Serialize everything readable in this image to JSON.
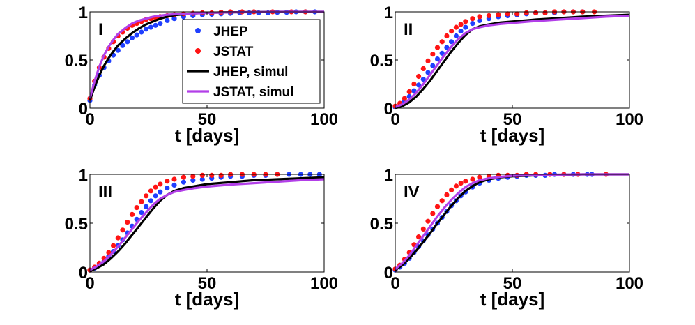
{
  "figure": {
    "legend": {
      "entries": [
        {
          "label": "JHEP",
          "kind": "dots",
          "color": "#1f3fff"
        },
        {
          "label": "JSTAT",
          "kind": "dots",
          "color": "#ff1414"
        },
        {
          "label": "JHEP, simul",
          "kind": "line",
          "color": "#000000"
        },
        {
          "label": "JSTAT, simul",
          "kind": "line",
          "color": "#b23fe8"
        }
      ]
    }
  },
  "chart_data": [
    {
      "panel": "I",
      "type": "scatter",
      "xlabel": "t [days]",
      "ylabel": "",
      "xlim": [
        0,
        100
      ],
      "ylim": [
        0,
        1
      ],
      "xticks": [
        "0",
        "50",
        "100"
      ],
      "yticks": [
        "0",
        "0.5",
        "1"
      ],
      "series": [
        {
          "name": "JHEP",
          "kind": "dots",
          "color": "#1f3fff",
          "x": [
            0,
            2,
            4,
            6,
            8,
            10,
            12,
            14,
            16,
            18,
            20,
            22,
            24,
            26,
            28,
            30,
            33,
            36,
            40,
            44,
            48,
            52,
            56,
            60,
            64,
            68,
            72,
            76,
            80,
            84,
            88,
            92,
            96
          ],
          "y": [
            0.08,
            0.24,
            0.34,
            0.42,
            0.49,
            0.55,
            0.6,
            0.65,
            0.69,
            0.73,
            0.76,
            0.79,
            0.82,
            0.84,
            0.86,
            0.88,
            0.91,
            0.93,
            0.95,
            0.96,
            0.97,
            0.975,
            0.98,
            0.985,
            0.99,
            0.99,
            0.99,
            0.99,
            0.995,
            0.995,
            1.0,
            1.0,
            1.0
          ]
        },
        {
          "name": "JSTAT",
          "kind": "dots",
          "color": "#ff1414",
          "x": [
            0,
            2,
            4,
            6,
            8,
            10,
            12,
            14,
            16,
            18,
            20,
            22,
            24,
            26,
            28,
            30,
            33,
            36,
            40,
            44,
            48,
            52,
            56,
            60,
            65,
            70,
            78,
            86,
            92
          ],
          "y": [
            0.1,
            0.28,
            0.42,
            0.53,
            0.62,
            0.69,
            0.75,
            0.79,
            0.83,
            0.86,
            0.88,
            0.9,
            0.92,
            0.93,
            0.94,
            0.95,
            0.96,
            0.97,
            0.98,
            0.985,
            0.99,
            0.99,
            0.995,
            1.0,
            1.0,
            1.0,
            1.0,
            1.0,
            1.0
          ]
        },
        {
          "name": "JHEP, simul",
          "kind": "line",
          "color": "#000000",
          "x": [
            0,
            2,
            4,
            6,
            8,
            10,
            12,
            15,
            18,
            21,
            24,
            27,
            30,
            33,
            36,
            40,
            45,
            50,
            60,
            70,
            80,
            90,
            100
          ],
          "y": [
            0.08,
            0.22,
            0.34,
            0.44,
            0.52,
            0.59,
            0.65,
            0.72,
            0.78,
            0.83,
            0.87,
            0.9,
            0.93,
            0.95,
            0.965,
            0.975,
            0.985,
            0.99,
            0.995,
            0.998,
            1.0,
            1.0,
            1.0
          ]
        },
        {
          "name": "JSTAT, simul",
          "kind": "line",
          "color": "#b23fe8",
          "x": [
            0,
            2,
            4,
            6,
            8,
            10,
            12,
            15,
            18,
            21,
            24,
            27,
            30,
            33,
            36,
            40,
            45,
            50,
            60,
            70,
            80,
            90,
            100
          ],
          "y": [
            0.1,
            0.28,
            0.43,
            0.55,
            0.64,
            0.71,
            0.77,
            0.83,
            0.88,
            0.91,
            0.93,
            0.95,
            0.96,
            0.97,
            0.975,
            0.98,
            0.985,
            0.99,
            0.995,
            0.997,
            0.999,
            1.0,
            1.0
          ]
        }
      ]
    },
    {
      "panel": "II",
      "type": "scatter",
      "xlabel": "t [days]",
      "ylabel": "",
      "xlim": [
        0,
        100
      ],
      "ylim": [
        0,
        1
      ],
      "xticks": [
        "0",
        "50",
        "100"
      ],
      "yticks": [
        "0",
        "0.5",
        "1"
      ],
      "series": [
        {
          "name": "JHEP",
          "kind": "dots",
          "color": "#1f3fff",
          "x": [
            0,
            2,
            4,
            6,
            8,
            10,
            12,
            14,
            16,
            18,
            20,
            22,
            24,
            26,
            28,
            30,
            33,
            36,
            40,
            44,
            48,
            52,
            56,
            60,
            64,
            68,
            72,
            76,
            80
          ],
          "y": [
            0.01,
            0.03,
            0.07,
            0.12,
            0.18,
            0.24,
            0.3,
            0.37,
            0.44,
            0.51,
            0.57,
            0.63,
            0.69,
            0.75,
            0.8,
            0.84,
            0.88,
            0.91,
            0.93,
            0.95,
            0.96,
            0.97,
            0.98,
            0.99,
            0.99,
            0.99,
            1.0,
            1.0,
            1.0
          ]
        },
        {
          "name": "JSTAT",
          "kind": "dots",
          "color": "#ff1414",
          "x": [
            0,
            2,
            4,
            6,
            8,
            10,
            12,
            14,
            16,
            18,
            20,
            22,
            24,
            26,
            28,
            30,
            33,
            36,
            40,
            44,
            48,
            52,
            56,
            60,
            64,
            68,
            72,
            76,
            80,
            85
          ],
          "y": [
            0.02,
            0.05,
            0.1,
            0.17,
            0.25,
            0.33,
            0.41,
            0.49,
            0.56,
            0.63,
            0.69,
            0.75,
            0.8,
            0.84,
            0.87,
            0.9,
            0.93,
            0.95,
            0.96,
            0.97,
            0.98,
            0.98,
            0.99,
            0.99,
            0.99,
            1.0,
            1.0,
            1.0,
            1.0,
            1.0
          ]
        },
        {
          "name": "JHEP, simul",
          "kind": "line",
          "color": "#000000",
          "x": [
            0,
            3,
            6,
            9,
            12,
            15,
            18,
            21,
            24,
            27,
            30,
            33,
            36,
            40,
            45,
            50,
            60,
            70,
            80,
            90,
            100
          ],
          "y": [
            0.0,
            0.02,
            0.06,
            0.12,
            0.2,
            0.29,
            0.39,
            0.49,
            0.59,
            0.68,
            0.76,
            0.82,
            0.85,
            0.87,
            0.89,
            0.9,
            0.92,
            0.935,
            0.95,
            0.96,
            0.97
          ]
        },
        {
          "name": "JSTAT, simul",
          "kind": "line",
          "color": "#b23fe8",
          "x": [
            0,
            3,
            6,
            9,
            12,
            15,
            18,
            21,
            24,
            27,
            30,
            33,
            36,
            40,
            45,
            50,
            60,
            70,
            80,
            90,
            100
          ],
          "y": [
            0.01,
            0.04,
            0.09,
            0.16,
            0.25,
            0.35,
            0.45,
            0.55,
            0.64,
            0.72,
            0.78,
            0.82,
            0.84,
            0.86,
            0.875,
            0.885,
            0.905,
            0.92,
            0.935,
            0.95,
            0.96
          ]
        }
      ]
    },
    {
      "panel": "III",
      "type": "scatter",
      "xlabel": "t [days]",
      "ylabel": "",
      "xlim": [
        0,
        100
      ],
      "ylim": [
        0,
        1
      ],
      "xticks": [
        "0",
        "50",
        "100"
      ],
      "yticks": [
        "0",
        "0.5",
        "1"
      ],
      "series": [
        {
          "name": "JHEP",
          "kind": "dots",
          "color": "#1f3fff",
          "x": [
            0,
            2,
            4,
            6,
            8,
            10,
            12,
            14,
            16,
            18,
            20,
            22,
            24,
            26,
            28,
            30,
            33,
            36,
            40,
            44,
            48,
            52,
            56,
            60,
            65,
            70,
            75,
            80,
            85,
            90,
            94,
            98
          ],
          "y": [
            0.02,
            0.04,
            0.07,
            0.11,
            0.16,
            0.21,
            0.27,
            0.33,
            0.4,
            0.47,
            0.54,
            0.61,
            0.67,
            0.73,
            0.78,
            0.82,
            0.86,
            0.89,
            0.92,
            0.94,
            0.95,
            0.96,
            0.97,
            0.98,
            0.98,
            0.99,
            0.99,
            1.0,
            1.0,
            1.0,
            1.0,
            1.0
          ]
        },
        {
          "name": "JSTAT",
          "kind": "dots",
          "color": "#ff1414",
          "x": [
            0,
            2,
            4,
            6,
            8,
            10,
            12,
            14,
            16,
            18,
            20,
            22,
            24,
            26,
            28,
            30,
            33,
            36,
            40,
            44,
            48,
            52,
            56,
            60,
            65,
            70,
            75,
            80
          ],
          "y": [
            0.02,
            0.05,
            0.09,
            0.14,
            0.2,
            0.27,
            0.35,
            0.43,
            0.51,
            0.59,
            0.66,
            0.72,
            0.78,
            0.83,
            0.87,
            0.9,
            0.93,
            0.95,
            0.97,
            0.98,
            0.99,
            0.99,
            0.99,
            1.0,
            1.0,
            1.0,
            1.0,
            1.0
          ]
        },
        {
          "name": "JHEP, simul",
          "kind": "line",
          "color": "#000000",
          "x": [
            0,
            3,
            6,
            9,
            12,
            15,
            18,
            21,
            24,
            27,
            30,
            33,
            36,
            40,
            45,
            50,
            60,
            70,
            80,
            90,
            100
          ],
          "y": [
            0.01,
            0.04,
            0.08,
            0.14,
            0.21,
            0.29,
            0.38,
            0.47,
            0.56,
            0.65,
            0.73,
            0.79,
            0.83,
            0.86,
            0.88,
            0.9,
            0.92,
            0.94,
            0.95,
            0.96,
            0.97
          ]
        },
        {
          "name": "JSTAT, simul",
          "kind": "line",
          "color": "#b23fe8",
          "x": [
            0,
            3,
            6,
            9,
            12,
            15,
            18,
            21,
            24,
            27,
            30,
            33,
            36,
            40,
            45,
            50,
            60,
            70,
            80,
            90,
            100
          ],
          "y": [
            0.02,
            0.06,
            0.11,
            0.18,
            0.26,
            0.35,
            0.44,
            0.53,
            0.61,
            0.69,
            0.75,
            0.79,
            0.82,
            0.84,
            0.86,
            0.875,
            0.895,
            0.91,
            0.925,
            0.94,
            0.95
          ]
        }
      ]
    },
    {
      "panel": "IV",
      "type": "scatter",
      "xlabel": "t [days]",
      "ylabel": "",
      "xlim": [
        0,
        100
      ],
      "ylim": [
        0,
        1
      ],
      "xticks": [
        "0",
        "50",
        "100"
      ],
      "yticks": [
        "0",
        "0.5",
        "1"
      ],
      "series": [
        {
          "name": "JHEP",
          "kind": "dots",
          "color": "#1f3fff",
          "x": [
            0,
            2,
            4,
            6,
            8,
            10,
            12,
            14,
            16,
            18,
            20,
            22,
            24,
            26,
            28,
            30,
            33,
            36,
            40,
            44,
            48,
            52,
            56,
            60,
            64,
            68,
            72,
            76,
            82,
            84
          ],
          "y": [
            0.02,
            0.05,
            0.09,
            0.14,
            0.2,
            0.26,
            0.32,
            0.38,
            0.44,
            0.5,
            0.56,
            0.62,
            0.68,
            0.73,
            0.78,
            0.82,
            0.87,
            0.91,
            0.94,
            0.96,
            0.97,
            0.98,
            0.99,
            0.99,
            0.99,
            1.0,
            1.0,
            1.0,
            1.0,
            1.0
          ]
        },
        {
          "name": "JSTAT",
          "kind": "dots",
          "color": "#ff1414",
          "x": [
            0,
            2,
            4,
            6,
            8,
            10,
            12,
            14,
            16,
            18,
            20,
            22,
            24,
            26,
            28,
            30,
            33,
            36,
            40,
            44,
            48,
            52,
            56,
            60,
            66,
            72,
            78,
            90
          ],
          "y": [
            0.03,
            0.07,
            0.13,
            0.2,
            0.28,
            0.36,
            0.44,
            0.52,
            0.6,
            0.67,
            0.73,
            0.79,
            0.84,
            0.88,
            0.91,
            0.93,
            0.95,
            0.97,
            0.98,
            0.99,
            0.99,
            0.99,
            1.0,
            1.0,
            1.0,
            1.0,
            1.0,
            1.0
          ]
        },
        {
          "name": "JHEP, simul",
          "kind": "line",
          "color": "#000000",
          "x": [
            0,
            3,
            6,
            9,
            12,
            15,
            18,
            21,
            24,
            27,
            30,
            33,
            36,
            40,
            45,
            50,
            60,
            70,
            80,
            90,
            100
          ],
          "y": [
            0.02,
            0.07,
            0.14,
            0.22,
            0.31,
            0.4,
            0.5,
            0.59,
            0.68,
            0.76,
            0.83,
            0.88,
            0.92,
            0.95,
            0.97,
            0.98,
            0.99,
            0.995,
            1.0,
            1.0,
            1.0
          ]
        },
        {
          "name": "JSTAT, simul",
          "kind": "line",
          "color": "#b23fe8",
          "x": [
            0,
            3,
            6,
            9,
            12,
            15,
            18,
            21,
            24,
            27,
            30,
            33,
            36,
            40,
            45,
            50,
            60,
            70,
            80,
            90,
            100
          ],
          "y": [
            0.03,
            0.09,
            0.17,
            0.27,
            0.37,
            0.47,
            0.57,
            0.66,
            0.74,
            0.81,
            0.87,
            0.91,
            0.94,
            0.96,
            0.975,
            0.985,
            0.993,
            0.997,
            1.0,
            1.0,
            1.0
          ]
        }
      ]
    }
  ]
}
